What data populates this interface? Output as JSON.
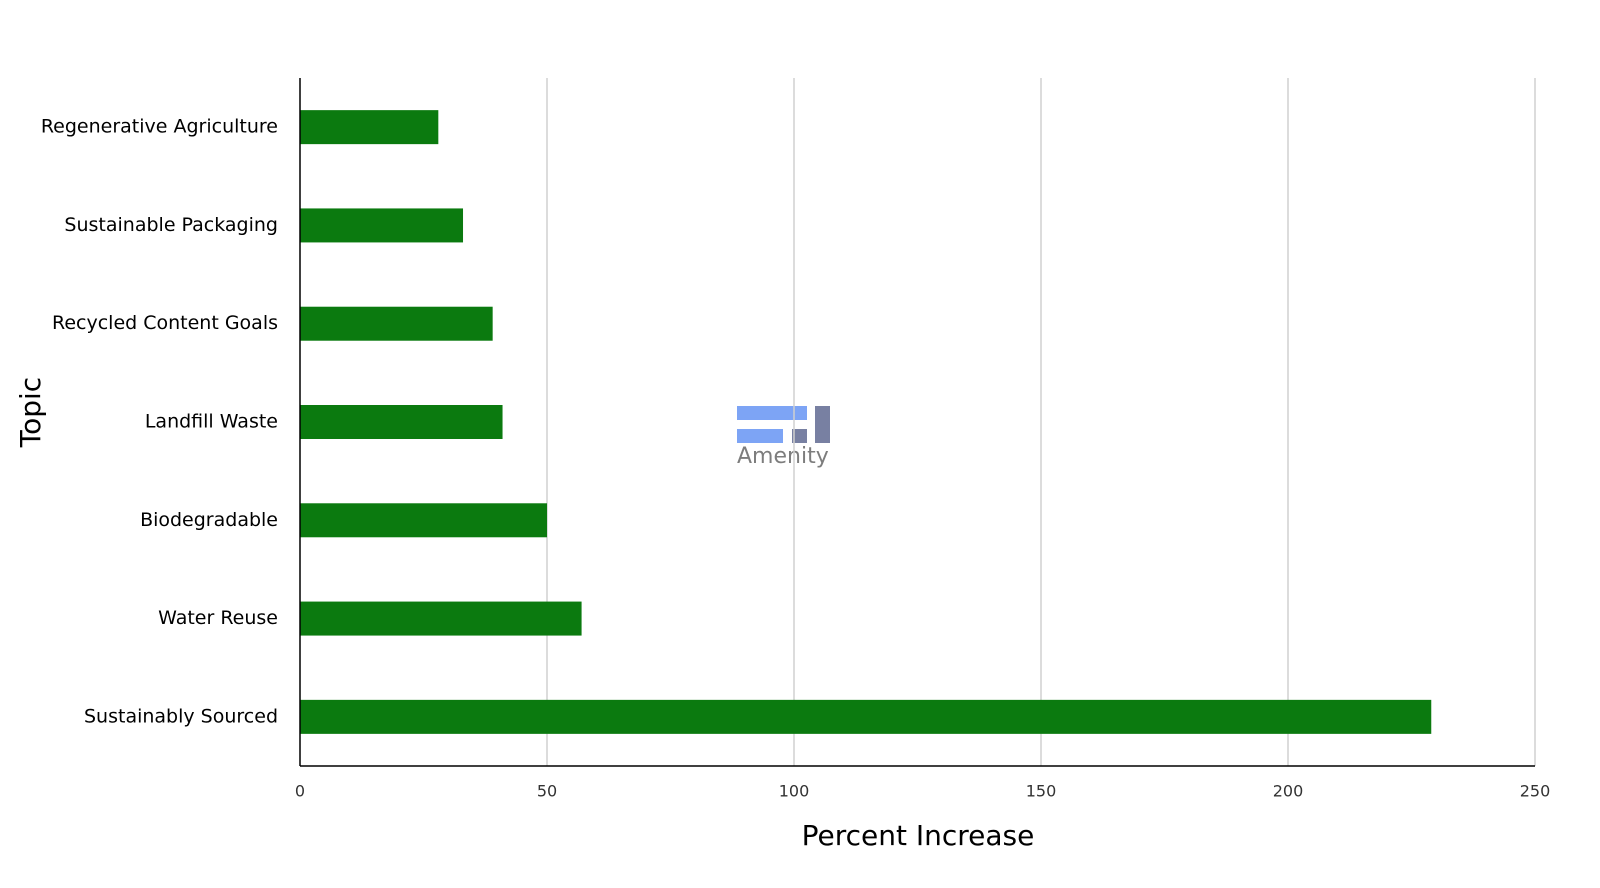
{
  "chart_data": {
    "type": "bar",
    "orientation": "horizontal",
    "x_label": "Percent Increase",
    "y_label": "Topic",
    "categories": [
      "Regenerative Agriculture",
      "Sustainable Packaging",
      "Recycled Content Goals",
      "Landfill Waste",
      "Biodegradable",
      "Water Reuse",
      "Sustainably Sourced"
    ],
    "values": [
      28,
      33,
      39,
      41,
      50,
      57,
      229
    ],
    "color": "#0b7a0f",
    "xlim": [
      0,
      250
    ],
    "xticks": [
      0,
      50,
      100,
      150,
      200,
      250
    ],
    "grid": true,
    "watermark": "Amenity"
  }
}
